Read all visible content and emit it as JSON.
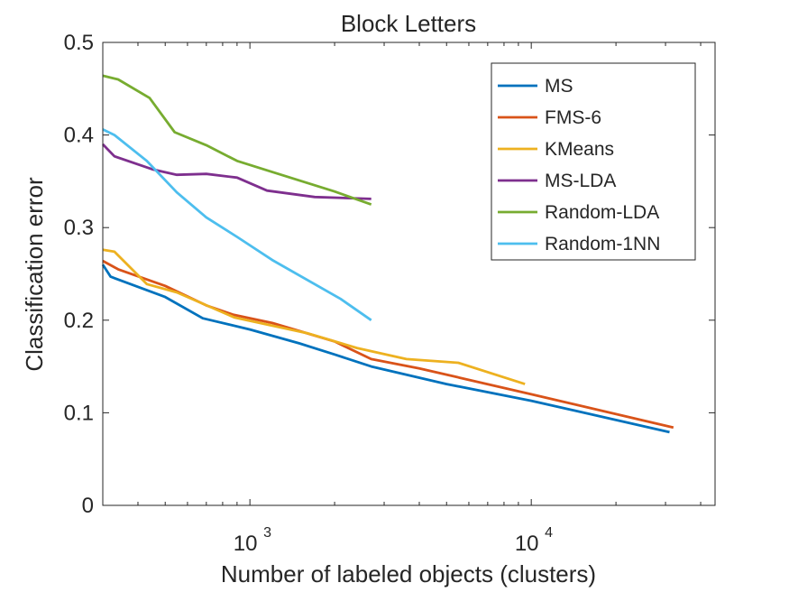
{
  "chart_data": {
    "type": "line",
    "title": "Block Letters",
    "xlabel": "Number of labeled objects (clusters)",
    "ylabel": "Classification error",
    "xscale": "log",
    "xlim": [
      300,
      45000
    ],
    "ylim": [
      0,
      0.5
    ],
    "yticks": [
      {
        "value": 0,
        "label": "0"
      },
      {
        "value": 0.1,
        "label": "0.1"
      },
      {
        "value": 0.2,
        "label": "0.2"
      },
      {
        "value": 0.3,
        "label": "0.3"
      },
      {
        "value": 0.4,
        "label": "0.4"
      },
      {
        "value": 0.5,
        "label": "0.5"
      }
    ],
    "xticks": [
      {
        "value": 1000,
        "base": "10",
        "exp": "3"
      },
      {
        "value": 10000,
        "base": "10",
        "exp": "4"
      }
    ],
    "grid": false,
    "legend_position": "top-right",
    "series": [
      {
        "name": "MS",
        "color": "#0072BD",
        "x": [
          300,
          320,
          500,
          680,
          1000,
          1500,
          2000,
          2700,
          5000,
          10000,
          31000
        ],
        "y": [
          0.26,
          0.247,
          0.225,
          0.202,
          0.19,
          0.175,
          0.163,
          0.15,
          0.131,
          0.113,
          0.079
        ]
      },
      {
        "name": "FMS-6",
        "color": "#D95319",
        "x": [
          300,
          340,
          500,
          700,
          870,
          1200,
          2000,
          2700,
          4000,
          10000,
          32000
        ],
        "y": [
          0.264,
          0.255,
          0.237,
          0.216,
          0.206,
          0.197,
          0.177,
          0.158,
          0.148,
          0.12,
          0.084
        ]
      },
      {
        "name": "KMeans",
        "color": "#EDB120",
        "x": [
          300,
          330,
          430,
          550,
          880,
          1600,
          2400,
          3600,
          5500,
          9500
        ],
        "y": [
          0.276,
          0.274,
          0.239,
          0.23,
          0.203,
          0.186,
          0.17,
          0.158,
          0.154,
          0.131
        ]
      },
      {
        "name": "MS-LDA",
        "color": "#7E2F8E",
        "x": [
          300,
          330,
          450,
          550,
          700,
          900,
          1150,
          1700,
          2700
        ],
        "y": [
          0.39,
          0.377,
          0.363,
          0.357,
          0.358,
          0.354,
          0.34,
          0.333,
          0.331
        ]
      },
      {
        "name": "Random-LDA",
        "color": "#77AC30",
        "x": [
          300,
          340,
          440,
          540,
          700,
          900,
          1200,
          2000,
          2700
        ],
        "y": [
          0.464,
          0.46,
          0.44,
          0.403,
          0.389,
          0.372,
          0.36,
          0.339,
          0.325
        ]
      },
      {
        "name": "Random-1NN",
        "color": "#4DBEEE",
        "x": [
          300,
          330,
          430,
          550,
          700,
          900,
          1200,
          2100,
          2700
        ],
        "y": [
          0.406,
          0.4,
          0.372,
          0.338,
          0.311,
          0.29,
          0.265,
          0.223,
          0.2
        ]
      }
    ]
  }
}
